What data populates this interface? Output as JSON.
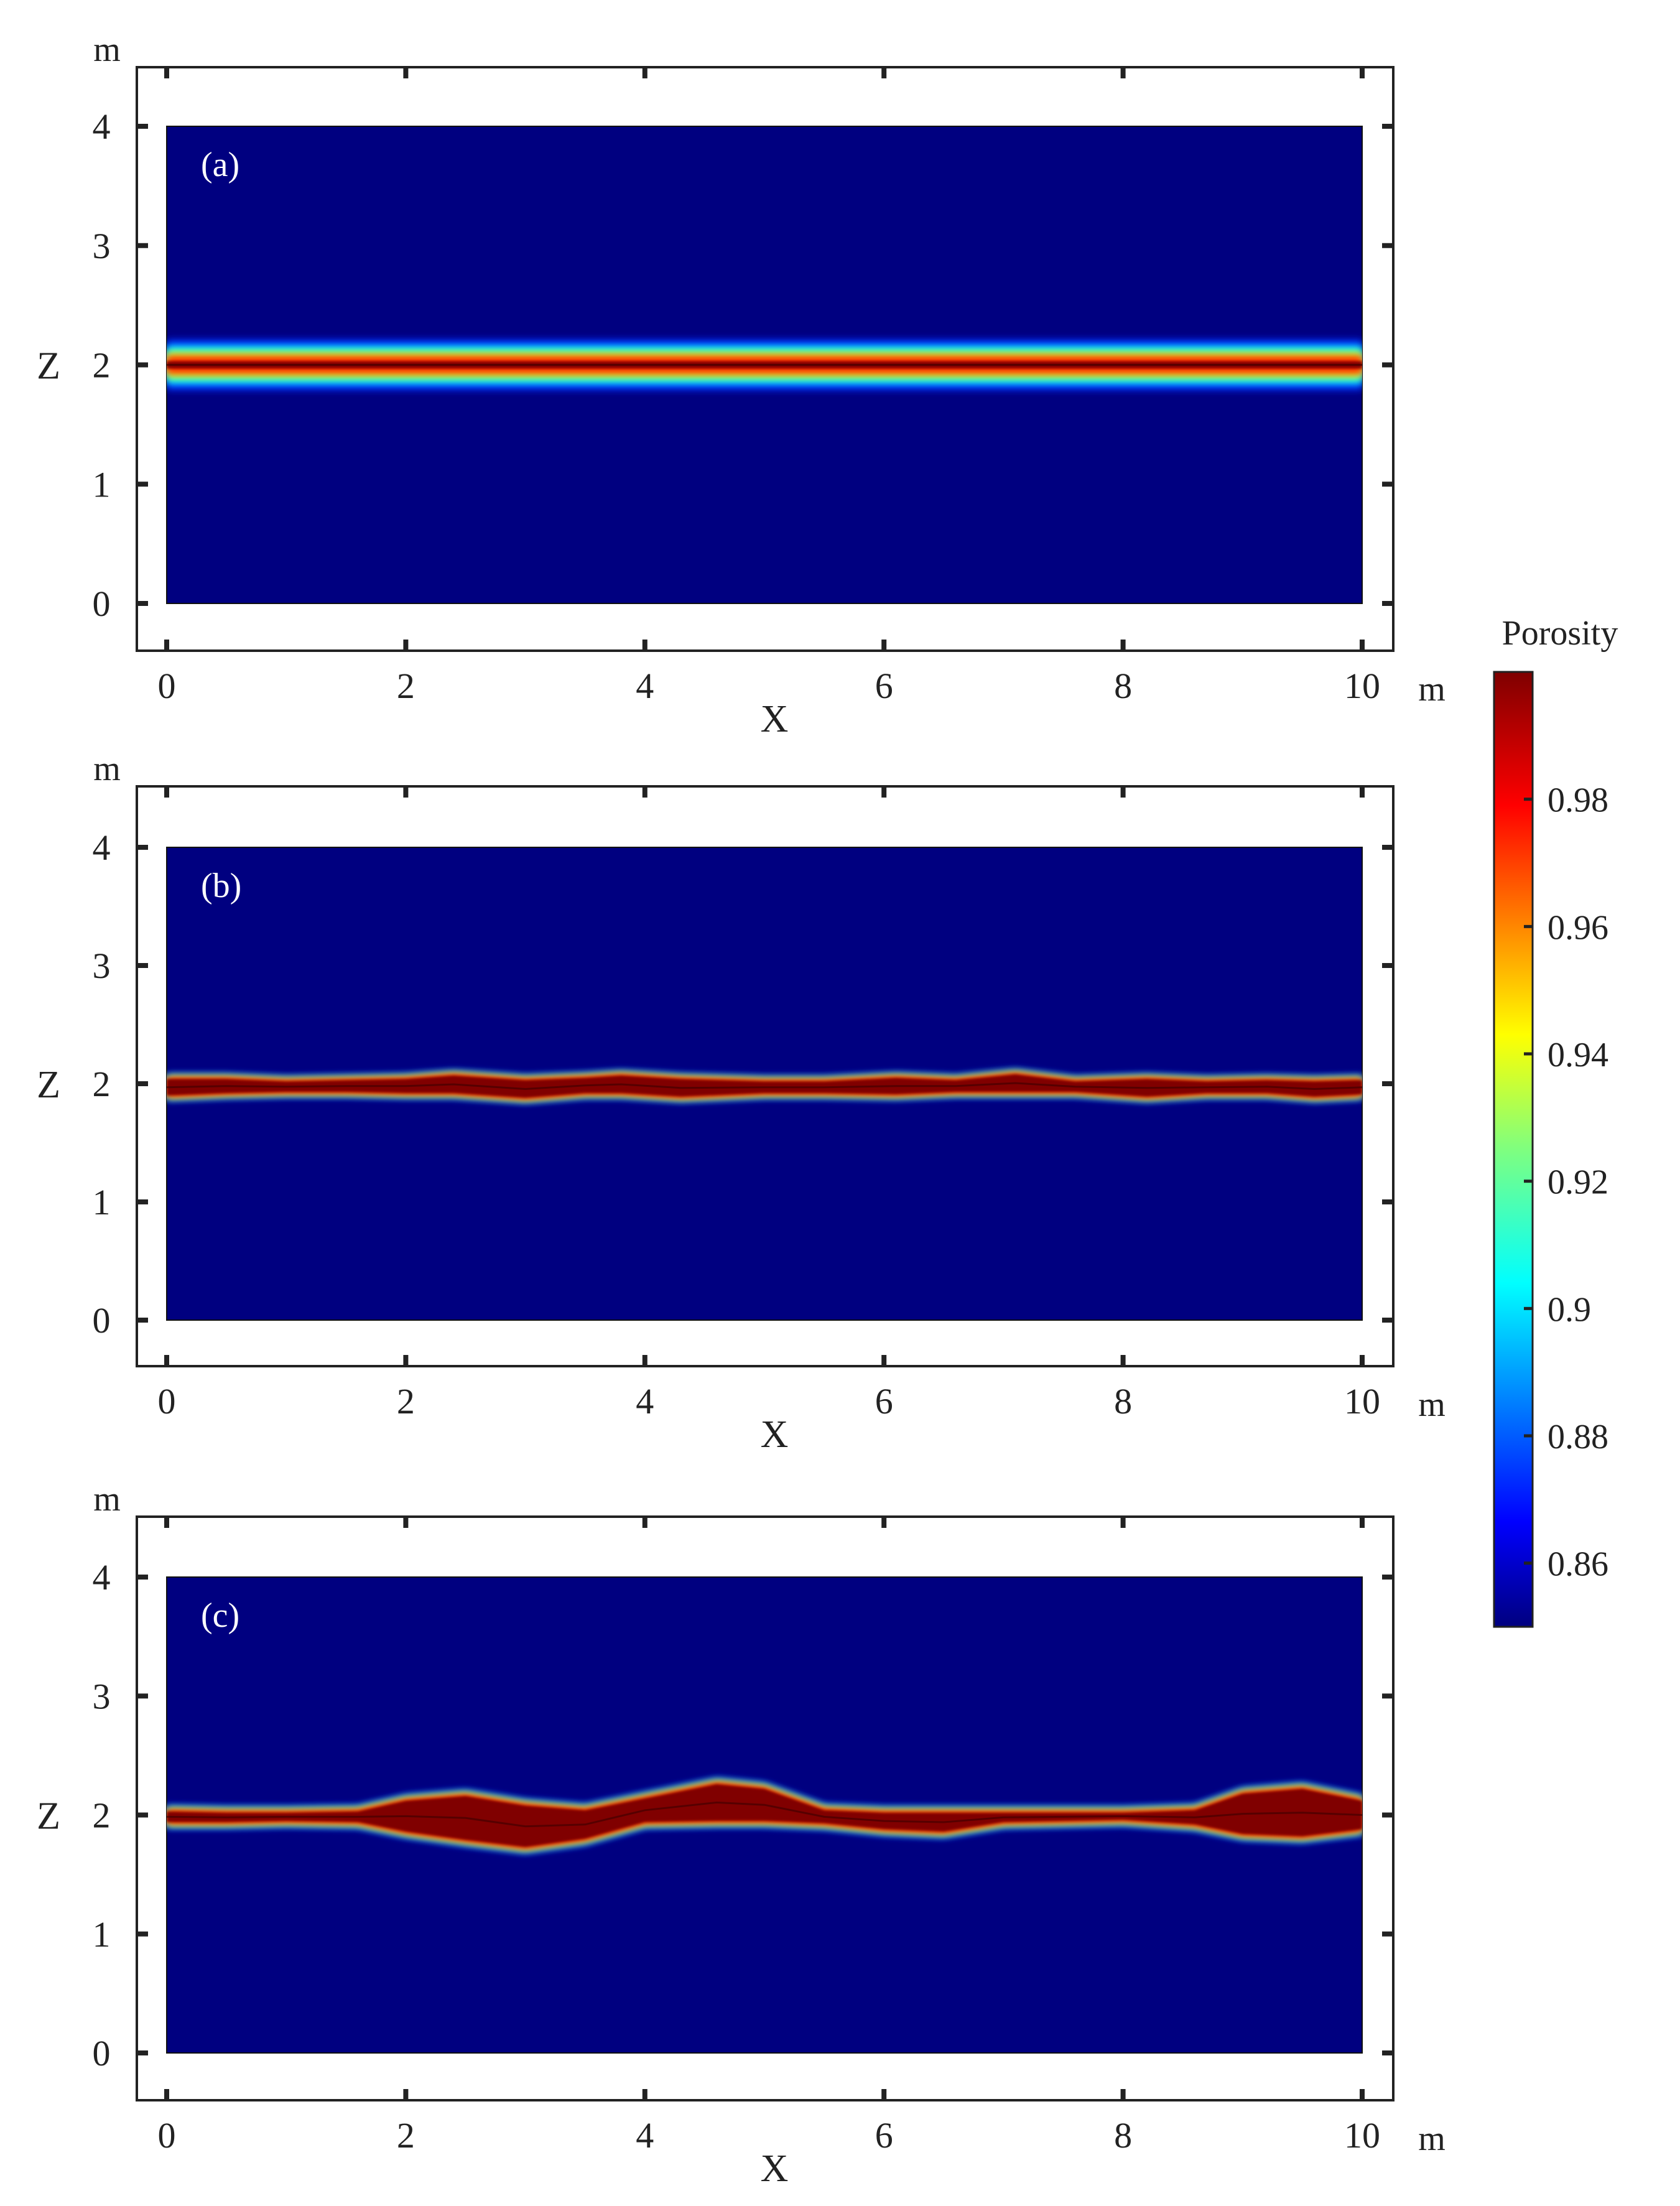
{
  "chart_data": [
    {
      "type": "heatmap",
      "panel_label": "(a)",
      "xlabel": "X",
      "ylabel": "Z",
      "x_unit": "m",
      "y_unit": "m",
      "xlim": [
        0,
        10
      ],
      "ylim": [
        0,
        4
      ],
      "x_ticks": [
        "0",
        "2",
        "4",
        "6",
        "8",
        "10"
      ],
      "y_ticks": [
        "0",
        "1",
        "2",
        "3",
        "4"
      ],
      "x_tick_values": [
        0,
        2,
        4,
        6,
        8,
        10
      ],
      "y_tick_values": [
        0,
        1,
        2,
        3,
        4
      ],
      "background_porosity": 0.85,
      "fracture_profile": {
        "x": [
          0,
          1,
          2,
          3,
          4,
          5,
          6,
          7,
          8,
          9,
          10
        ],
        "upper_z": [
          2.03,
          2.03,
          2.03,
          2.03,
          2.03,
          2.03,
          2.03,
          2.03,
          2.03,
          2.03,
          2.03
        ],
        "lower_z": [
          1.97,
          1.97,
          1.97,
          1.97,
          1.97,
          1.97,
          1.97,
          1.97,
          1.97,
          1.97,
          1.97
        ],
        "halo_width": 0.18
      }
    },
    {
      "type": "heatmap",
      "panel_label": "(b)",
      "xlabel": "X",
      "ylabel": "Z",
      "x_unit": "m",
      "y_unit": "m",
      "xlim": [
        0,
        10
      ],
      "ylim": [
        0,
        4
      ],
      "x_ticks": [
        "0",
        "2",
        "4",
        "6",
        "8",
        "10"
      ],
      "y_ticks": [
        "0",
        "1",
        "2",
        "3",
        "4"
      ],
      "x_tick_values": [
        0,
        2,
        4,
        6,
        8,
        10
      ],
      "y_tick_values": [
        0,
        1,
        2,
        3,
        4
      ],
      "background_porosity": 0.85,
      "fracture_profile": {
        "x": [
          0,
          0.5,
          1,
          1.5,
          2,
          2.4,
          3,
          3.5,
          3.8,
          4.3,
          5,
          5.5,
          6.1,
          6.6,
          7.1,
          7.6,
          8.2,
          8.7,
          9.2,
          9.6,
          10
        ],
        "upper_z": [
          2.04,
          2.04,
          2.02,
          2.03,
          2.04,
          2.07,
          2.03,
          2.05,
          2.07,
          2.04,
          2.02,
          2.02,
          2.05,
          2.03,
          2.08,
          2.02,
          2.04,
          2.02,
          2.03,
          2.02,
          2.03
        ],
        "lower_z": [
          1.9,
          1.92,
          1.93,
          1.93,
          1.92,
          1.92,
          1.88,
          1.92,
          1.92,
          1.89,
          1.92,
          1.92,
          1.91,
          1.93,
          1.93,
          1.93,
          1.89,
          1.92,
          1.92,
          1.89,
          1.91
        ],
        "halo_width": 0.04
      }
    },
    {
      "type": "heatmap",
      "panel_label": "(c)",
      "xlabel": "X",
      "ylabel": "Z",
      "x_unit": "m",
      "y_unit": "m",
      "xlim": [
        0,
        10
      ],
      "ylim": [
        0,
        4
      ],
      "x_ticks": [
        "0",
        "2",
        "4",
        "6",
        "8",
        "10"
      ],
      "y_ticks": [
        "0",
        "1",
        "2",
        "3",
        "4"
      ],
      "x_tick_values": [
        0,
        2,
        4,
        6,
        8,
        10
      ],
      "y_tick_values": [
        0,
        1,
        2,
        3,
        4
      ],
      "background_porosity": 0.85,
      "fracture_profile": {
        "x": [
          0,
          0.5,
          1.0,
          1.6,
          2.0,
          2.5,
          3.0,
          3.5,
          4.0,
          4.6,
          5.0,
          5.5,
          6.0,
          6.5,
          7.0,
          7.5,
          8.0,
          8.6,
          9.0,
          9.5,
          10
        ],
        "upper_z": [
          2.03,
          2.02,
          2.02,
          2.03,
          2.12,
          2.16,
          2.08,
          2.04,
          2.14,
          2.26,
          2.22,
          2.04,
          2.02,
          2.02,
          2.02,
          2.02,
          2.02,
          2.04,
          2.18,
          2.22,
          2.12
        ],
        "lower_z": [
          1.94,
          1.94,
          1.95,
          1.94,
          1.86,
          1.79,
          1.73,
          1.8,
          1.94,
          1.95,
          1.95,
          1.93,
          1.88,
          1.86,
          1.94,
          1.95,
          1.96,
          1.92,
          1.84,
          1.82,
          1.88
        ],
        "halo_width": 0.05
      }
    }
  ],
  "colorbar": {
    "title": "Porosity",
    "min": 0.85,
    "max": 1.0,
    "tick_values": [
      0.86,
      0.88,
      0.9,
      0.92,
      0.94,
      0.96,
      0.98
    ],
    "tick_labels": [
      "0.86",
      "0.88",
      "0.9",
      "0.92",
      "0.94",
      "0.96",
      "0.98"
    ],
    "colormap": "jet"
  }
}
